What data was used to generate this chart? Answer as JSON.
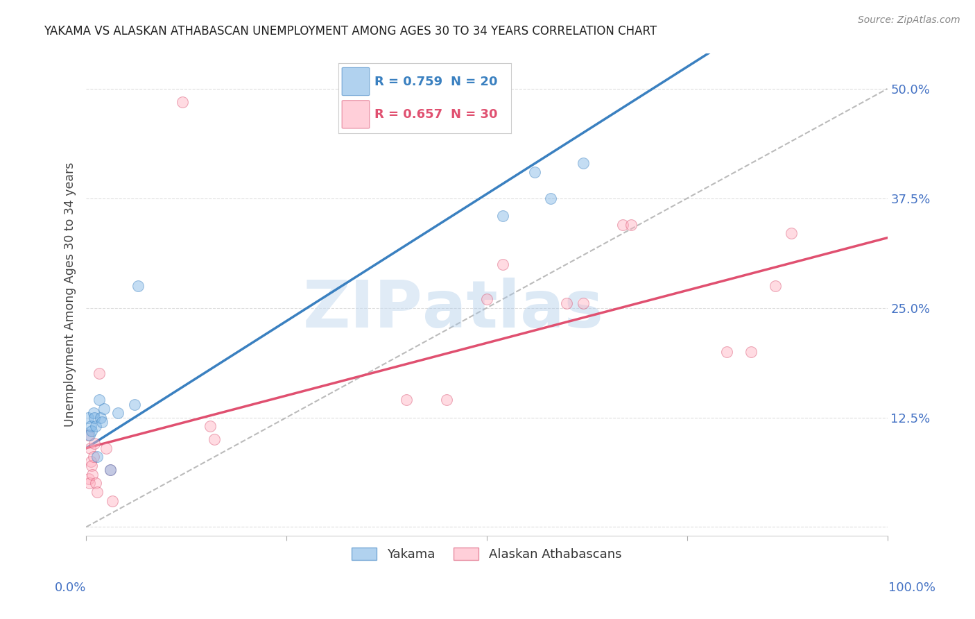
{
  "title": "YAKAMA VS ALASKAN ATHABASCAN UNEMPLOYMENT AMONG AGES 30 TO 34 YEARS CORRELATION CHART",
  "source": "Source: ZipAtlas.com",
  "ylabel": "Unemployment Among Ages 30 to 34 years",
  "legend_blue_r": "R = 0.759",
  "legend_blue_n": "N = 20",
  "legend_pink_r": "R = 0.657",
  "legend_pink_n": "N = 30",
  "legend_label_blue": "Yakama",
  "legend_label_pink": "Alaskan Athabascans",
  "blue_scatter_x": [
    0.002,
    0.004,
    0.006,
    0.007,
    0.009,
    0.01,
    0.012,
    0.014,
    0.016,
    0.018,
    0.02,
    0.022,
    0.03,
    0.04,
    0.06,
    0.065,
    0.52,
    0.56,
    0.58,
    0.62
  ],
  "blue_scatter_y": [
    0.125,
    0.105,
    0.115,
    0.11,
    0.13,
    0.125,
    0.115,
    0.08,
    0.145,
    0.125,
    0.12,
    0.135,
    0.065,
    0.13,
    0.14,
    0.275,
    0.355,
    0.405,
    0.375,
    0.415
  ],
  "pink_scatter_x": [
    0.002,
    0.003,
    0.004,
    0.005,
    0.006,
    0.007,
    0.008,
    0.009,
    0.01,
    0.012,
    0.014,
    0.016,
    0.025,
    0.03,
    0.033,
    0.12,
    0.155,
    0.16,
    0.4,
    0.45,
    0.5,
    0.52,
    0.6,
    0.62,
    0.67,
    0.68,
    0.8,
    0.83,
    0.86,
    0.88
  ],
  "pink_scatter_y": [
    0.105,
    0.055,
    0.05,
    0.09,
    0.075,
    0.07,
    0.06,
    0.08,
    0.095,
    0.05,
    0.04,
    0.175,
    0.09,
    0.065,
    0.03,
    0.485,
    0.115,
    0.1,
    0.145,
    0.145,
    0.26,
    0.3,
    0.255,
    0.255,
    0.345,
    0.345,
    0.2,
    0.2,
    0.275,
    0.335
  ],
  "blue_line_intercept": 0.09,
  "blue_line_slope": 0.58,
  "pink_line_intercept": 0.09,
  "pink_line_slope": 0.24,
  "xmin": 0.0,
  "xmax": 1.0,
  "ymin": -0.01,
  "ymax": 0.54,
  "ytick_vals": [
    0.0,
    0.125,
    0.25,
    0.375,
    0.5
  ],
  "ytick_labels": [
    "",
    "12.5%",
    "25.0%",
    "37.5%",
    "50.0%"
  ],
  "blue_face": "#7EB5E5",
  "blue_edge": "#3A80C0",
  "pink_face": "#FFB0C0",
  "pink_edge": "#D85070",
  "blue_line_color": "#3A80C0",
  "pink_line_color": "#E05070",
  "diag_color": "#BBBBBB",
  "grid_color": "#DDDDDD",
  "title_color": "#222222",
  "axis_color": "#4472C4",
  "bg_color": "#FFFFFF",
  "scatter_size": 130,
  "scatter_alpha": 0.45,
  "line_width": 2.5
}
